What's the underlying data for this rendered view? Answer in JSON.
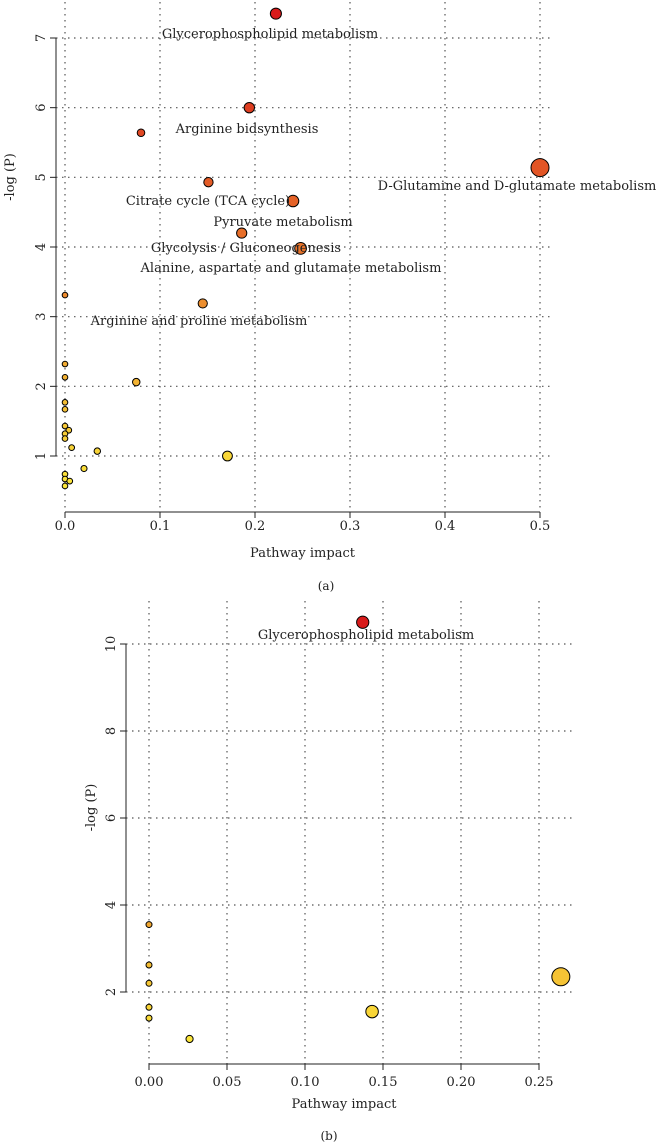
{
  "chart_data": [
    {
      "type": "scatter",
      "panel_label": "(a)",
      "xlabel": "Pathway impact",
      "ylabel": "-log (P)",
      "xlim": [
        0.0,
        0.5
      ],
      "ylim": [
        0.6,
        7.4
      ],
      "xticks": [
        0.0,
        0.1,
        0.2,
        0.3,
        0.4,
        0.5
      ],
      "xtick_labels": [
        "0.0",
        "0.1",
        "0.2",
        "0.3",
        "0.4",
        "0.5"
      ],
      "yticks": [
        1,
        2,
        3,
        4,
        5,
        6,
        7
      ],
      "ytick_labels": [
        "1",
        "2",
        "3",
        "4",
        "5",
        "6",
        "7"
      ],
      "grid": true,
      "point_size_encodes": "Pathway impact",
      "point_color_encodes": "-log (P) (yellow low to red high)",
      "points": [
        {
          "x": 0.222,
          "y": 7.35,
          "label": "Glycerophospholipid metabolism"
        },
        {
          "x": 0.194,
          "y": 6.0,
          "label": "Arginine bidsynthesis"
        },
        {
          "x": 0.08,
          "y": 5.64
        },
        {
          "x": 0.5,
          "y": 5.14,
          "label": "D-Glutamine and D-glutamate metabolism"
        },
        {
          "x": 0.151,
          "y": 4.93,
          "label": "Citrate cycle (TCA cycle)"
        },
        {
          "x": 0.24,
          "y": 4.66,
          "label": "Pyruvate metabolism"
        },
        {
          "x": 0.186,
          "y": 4.2,
          "label": "Glycolysis / Gluconeogenesis"
        },
        {
          "x": 0.248,
          "y": 3.98,
          "label": "Alanine, aspartate and glutamate metabolism"
        },
        {
          "x": 0.0,
          "y": 3.31
        },
        {
          "x": 0.145,
          "y": 3.19,
          "label": "Arginine and proline metabolism"
        },
        {
          "x": 0.0,
          "y": 2.32
        },
        {
          "x": 0.0,
          "y": 2.13
        },
        {
          "x": 0.075,
          "y": 2.06
        },
        {
          "x": 0.0,
          "y": 1.77
        },
        {
          "x": 0.0,
          "y": 1.67
        },
        {
          "x": 0.0,
          "y": 1.43
        },
        {
          "x": 0.004,
          "y": 1.37
        },
        {
          "x": 0.0,
          "y": 1.32
        },
        {
          "x": 0.0,
          "y": 1.25
        },
        {
          "x": 0.007,
          "y": 1.12
        },
        {
          "x": 0.034,
          "y": 1.07
        },
        {
          "x": 0.171,
          "y": 1.0
        },
        {
          "x": 0.02,
          "y": 0.82
        },
        {
          "x": 0.0,
          "y": 0.74
        },
        {
          "x": 0.0,
          "y": 0.67
        },
        {
          "x": 0.005,
          "y": 0.64
        },
        {
          "x": 0.0,
          "y": 0.57
        }
      ]
    },
    {
      "type": "scatter",
      "panel_label": "(b)",
      "xlabel": "Pathway impact",
      "ylabel": "-log (P)",
      "xlim": [
        0.0,
        0.265
      ],
      "ylim": [
        0.8,
        10.7
      ],
      "xticks": [
        0.0,
        0.05,
        0.1,
        0.15,
        0.2,
        0.25
      ],
      "xtick_labels": [
        "0.00",
        "0.05",
        "0.10",
        "0.15",
        "0.20",
        "0.25"
      ],
      "yticks": [
        2,
        4,
        6,
        8,
        10
      ],
      "ytick_labels": [
        "2",
        "4",
        "6",
        "8",
        "10"
      ],
      "grid": true,
      "point_size_encodes": "Pathway impact",
      "point_color_encodes": "-log (P) (yellow low to red high)",
      "points": [
        {
          "x": 0.137,
          "y": 10.5,
          "label": "Glycerophospholipid metabolism"
        },
        {
          "x": 0.0,
          "y": 3.55
        },
        {
          "x": 0.0,
          "y": 2.62
        },
        {
          "x": 0.0,
          "y": 2.2
        },
        {
          "x": 0.264,
          "y": 2.35
        },
        {
          "x": 0.0,
          "y": 1.65
        },
        {
          "x": 0.143,
          "y": 1.55
        },
        {
          "x": 0.0,
          "y": 1.4
        },
        {
          "x": 0.026,
          "y": 0.92
        }
      ]
    }
  ]
}
